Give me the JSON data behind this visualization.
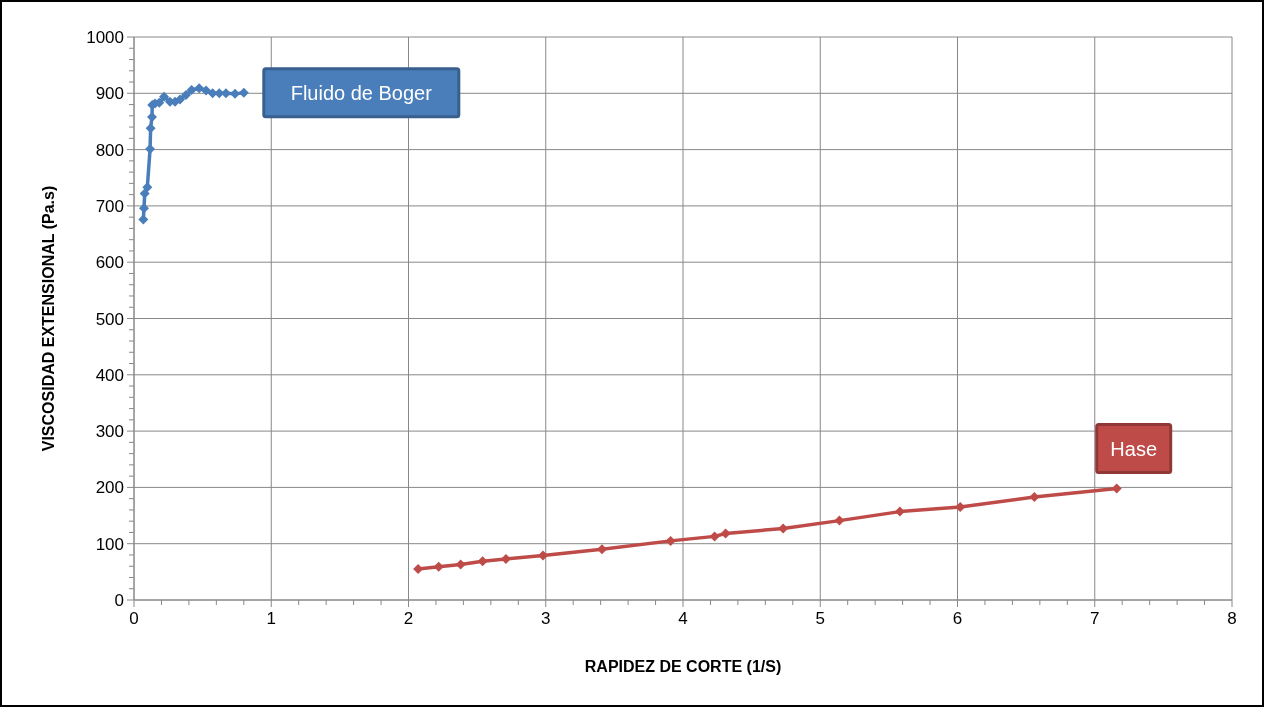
{
  "chart_data": {
    "type": "line",
    "xlabel": "RAPIDEZ DE CORTE (1/S)",
    "ylabel": "VISCOSIDAD EXTENSIONAL (Pa.s)",
    "xlim": [
      0,
      8
    ],
    "ylim": [
      0,
      1000
    ],
    "xticks": [
      0,
      {
        "value": 0.2,
        "label": null
      },
      {
        "value": 0.4,
        "label": null
      },
      {
        "value": 0.6,
        "label": null
      },
      {
        "value": 0.8,
        "label": null
      },
      1,
      {
        "value": 1.2,
        "label": null
      },
      {
        "value": 1.4,
        "label": null
      },
      {
        "value": 1.6,
        "label": null
      },
      {
        "value": 1.8,
        "label": null
      },
      2,
      {
        "value": 2.2,
        "label": null
      },
      {
        "value": 2.4,
        "label": null
      },
      {
        "value": 2.6,
        "label": null
      },
      {
        "value": 2.8,
        "label": null
      },
      3,
      {
        "value": 3.2,
        "label": null
      },
      {
        "value": 3.4,
        "label": null
      },
      {
        "value": 3.6,
        "label": null
      },
      {
        "value": 3.8,
        "label": null
      },
      4,
      {
        "value": 4.2,
        "label": null
      },
      {
        "value": 4.4,
        "label": null
      },
      {
        "value": 4.6,
        "label": null
      },
      {
        "value": 4.8,
        "label": null
      },
      5,
      {
        "value": 5.2,
        "label": null
      },
      {
        "value": 5.4,
        "label": null
      },
      {
        "value": 5.6,
        "label": null
      },
      {
        "value": 5.8,
        "label": null
      },
      6,
      {
        "value": 6.2,
        "label": null
      },
      {
        "value": 6.4,
        "label": null
      },
      {
        "value": 6.6,
        "label": null
      },
      {
        "value": 6.8,
        "label": null
      },
      7,
      {
        "value": 7.2,
        "label": null
      },
      {
        "value": 7.4,
        "label": null
      },
      {
        "value": 7.6,
        "label": null
      },
      {
        "value": 7.8,
        "label": null
      },
      8
    ],
    "yticks": [
      0,
      {
        "value": 20,
        "label": null
      },
      {
        "value": 40,
        "label": null
      },
      {
        "value": 60,
        "label": null
      },
      {
        "value": 80,
        "label": null
      },
      100,
      {
        "value": 120,
        "label": null
      },
      {
        "value": 140,
        "label": null
      },
      {
        "value": 160,
        "label": null
      },
      {
        "value": 180,
        "label": null
      },
      200,
      {
        "value": 220,
        "label": null
      },
      {
        "value": 240,
        "label": null
      },
      {
        "value": 260,
        "label": null
      },
      {
        "value": 280,
        "label": null
      },
      300,
      {
        "value": 320,
        "label": null
      },
      {
        "value": 340,
        "label": null
      },
      {
        "value": 360,
        "label": null
      },
      {
        "value": 380,
        "label": null
      },
      400,
      {
        "value": 420,
        "label": null
      },
      {
        "value": 440,
        "label": null
      },
      {
        "value": 460,
        "label": null
      },
      {
        "value": 480,
        "label": null
      },
      500,
      {
        "value": 520,
        "label": null
      },
      {
        "value": 540,
        "label": null
      },
      {
        "value": 560,
        "label": null
      },
      {
        "value": 580,
        "label": null
      },
      600,
      {
        "value": 620,
        "label": null
      },
      {
        "value": 640,
        "label": null
      },
      {
        "value": 660,
        "label": null
      },
      {
        "value": 680,
        "label": null
      },
      700,
      {
        "value": 720,
        "label": null
      },
      {
        "value": 740,
        "label": null
      },
      {
        "value": 760,
        "label": null
      },
      {
        "value": 780,
        "label": null
      },
      800,
      {
        "value": 820,
        "label": null
      },
      {
        "value": 840,
        "label": null
      },
      {
        "value": 860,
        "label": null
      },
      {
        "value": 880,
        "label": null
      },
      900,
      {
        "value": 920,
        "label": null
      },
      {
        "value": 940,
        "label": null
      },
      {
        "value": 960,
        "label": null
      },
      {
        "value": 980,
        "label": null
      },
      1000
    ],
    "grid": true,
    "marker": "diamond",
    "line_style": "solid",
    "series": [
      {
        "name": "Fluido de Boger",
        "color": "#4a7ebb",
        "x": [
          0.068,
          0.073,
          0.078,
          0.097,
          0.117,
          0.121,
          0.131,
          0.133,
          0.153,
          0.184,
          0.219,
          0.262,
          0.299,
          0.335,
          0.379,
          0.42,
          0.475,
          0.525,
          0.573,
          0.621,
          0.67,
          0.736,
          0.8
        ],
        "values": [
          676,
          696,
          722,
          733,
          801,
          838,
          858,
          879,
          882,
          883,
          894,
          885,
          885,
          889,
          897,
          906,
          909,
          905,
          900,
          900,
          900,
          899,
          901
        ]
      },
      {
        "name": "Hase",
        "color": "#be4b48",
        "x": [
          2.07,
          2.22,
          2.38,
          2.54,
          2.71,
          2.98,
          3.41,
          3.91,
          4.23,
          4.31,
          4.73,
          5.14,
          5.58,
          6.02,
          6.56,
          7.16
        ],
        "values": [
          55,
          59,
          63,
          69,
          73,
          79,
          90,
          105,
          113,
          118,
          127,
          141,
          157,
          165,
          183,
          198
        ]
      }
    ]
  }
}
